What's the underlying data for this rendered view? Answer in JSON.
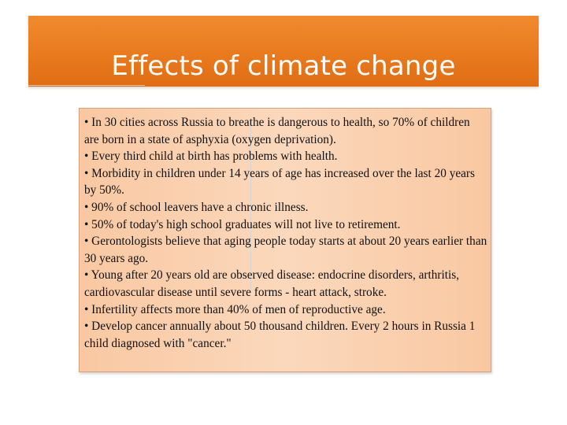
{
  "slide": {
    "title": "Effects of climate change",
    "bullets": [
      "• In 30 cities across Russia to breathe is dangerous to health, so 70% of children are born in a state of asphyxia (oxygen deprivation).",
      "• Every third child at birth has problems with health.",
      "• Morbidity in children under 14 years of age has increased over the last 20 years by 50%.",
      "• 90% of school leavers have a chronic illness.",
      "• 50% of today's high school graduates will not live to retirement.",
      "• Gerontologists believe that aging people today starts at about 20 years earlier than 30 years ago.",
      "• Young after 20 years old are observed disease: endocrine disorders, arthritis, cardiovascular disease until severe forms - heart attack, stroke.",
      "• Infertility affects more than 40% of men of reproductive age.",
      "• Develop cancer annually about 50 thousand children. Every 2 hours in Russia 1 child diagnosed with \"cancer.\""
    ]
  },
  "colors": {
    "title_bar": "#e97a1e",
    "content_box": "#fbd8bc",
    "text": "#111111"
  }
}
